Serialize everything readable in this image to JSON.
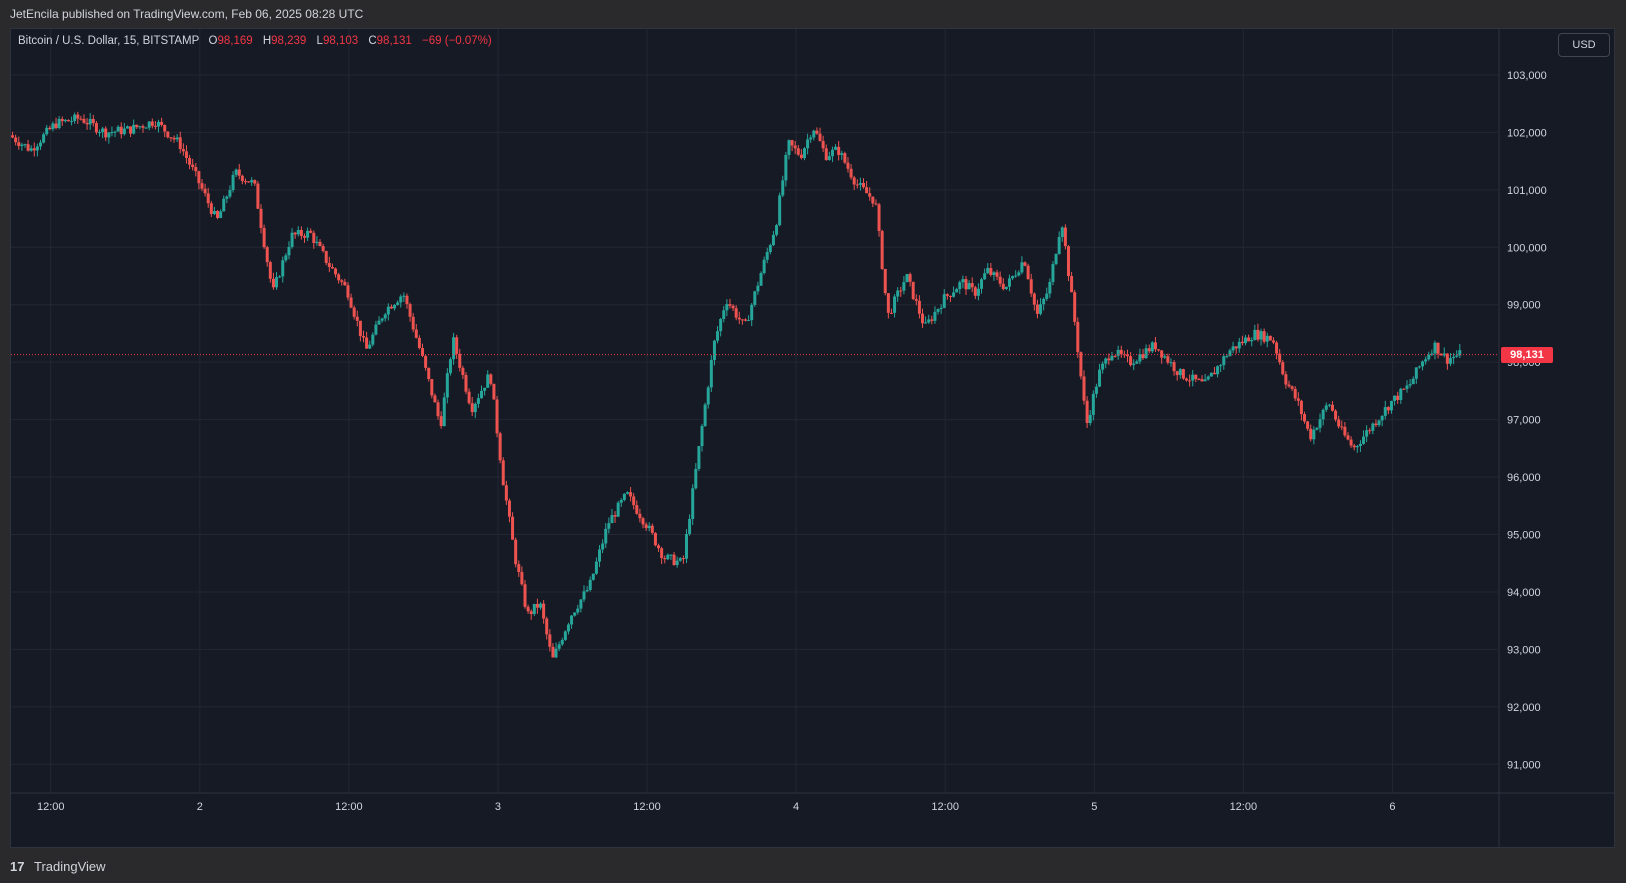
{
  "publisher_line": "JetEncila published on TradingView.com, Feb 06, 2025 08:28 UTC",
  "legend": {
    "symbol": "Bitcoin / U.S. Dollar, 15, BITSTAMP",
    "o_label": "O",
    "o_value": "98,169",
    "h_label": "H",
    "h_value": "98,239",
    "l_label": "L",
    "l_value": "98,103",
    "c_label": "C",
    "c_value": "98,131",
    "change": "−69 (−0.07%)"
  },
  "currency_button": "USD",
  "last_price_label": "98,131",
  "footer": {
    "logo": "17",
    "brand": "TradingView"
  },
  "colors": {
    "up": "#26a69a",
    "down": "#ef5350",
    "background": "#161a25",
    "grid": "#232733",
    "price_line": "#f23645"
  },
  "chart_data": {
    "type": "candlestick",
    "title": "Bitcoin / U.S. Dollar, 15, BITSTAMP",
    "interval": "15",
    "currency": "USD",
    "ylim": [
      90500,
      103800
    ],
    "y_ticks": [
      103000,
      102000,
      101000,
      100000,
      99000,
      98000,
      97000,
      96000,
      95000,
      94000,
      93000,
      92000,
      91000
    ],
    "y_tick_labels": [
      "103,000",
      "102,000",
      "101,000",
      "100,000",
      "99,000",
      "98,000",
      "97,000",
      "96,000",
      "95,000",
      "94,000",
      "93,000",
      "92,000",
      "91,000"
    ],
    "x_tick_labels": [
      "12:00",
      "2",
      "12:00",
      "3",
      "12:00",
      "4",
      "12:00",
      "5",
      "12:00",
      "6"
    ],
    "x_tick_hours": [
      12,
      24,
      36,
      48,
      60,
      72,
      84,
      96,
      108,
      120
    ],
    "x_range_hours": [
      8.8,
      128.5
    ],
    "last_price": 98131,
    "grid": true,
    "price_path": [
      [
        8.8,
        101950
      ],
      [
        10.5,
        101700
      ],
      [
        12.5,
        102150
      ],
      [
        14.5,
        102250
      ],
      [
        16.5,
        102000
      ],
      [
        18.5,
        102050
      ],
      [
        20.5,
        102200
      ],
      [
        22.5,
        101800
      ],
      [
        24,
        101150
      ],
      [
        25.5,
        100450
      ],
      [
        27,
        101300
      ],
      [
        28.5,
        101100
      ],
      [
        30,
        99200
      ],
      [
        31.5,
        100200
      ],
      [
        33,
        100250
      ],
      [
        34.5,
        99700
      ],
      [
        36,
        99250
      ],
      [
        37.5,
        98200
      ],
      [
        39,
        98900
      ],
      [
        40.5,
        99200
      ],
      [
        42,
        98100
      ],
      [
        43.5,
        96900
      ],
      [
        44.5,
        98400
      ],
      [
        46,
        97200
      ],
      [
        47.5,
        97800
      ],
      [
        48.5,
        96000
      ],
      [
        49.5,
        94600
      ],
      [
        50.5,
        93600
      ],
      [
        51.5,
        93800
      ],
      [
        52.5,
        92800
      ],
      [
        54,
        93600
      ],
      [
        55.5,
        94100
      ],
      [
        57,
        95200
      ],
      [
        58.5,
        95700
      ],
      [
        60,
        95200
      ],
      [
        61.5,
        94600
      ],
      [
        63,
        94500
      ],
      [
        64.5,
        96800
      ],
      [
        65.5,
        98300
      ],
      [
        66.5,
        99100
      ],
      [
        68,
        98600
      ],
      [
        69.5,
        99700
      ],
      [
        70.5,
        100400
      ],
      [
        71.5,
        101800
      ],
      [
        72.5,
        101600
      ],
      [
        73.5,
        102100
      ],
      [
        74.5,
        101600
      ],
      [
        75.5,
        101700
      ],
      [
        77,
        101100
      ],
      [
        78.5,
        100800
      ],
      [
        79.5,
        98800
      ],
      [
        81,
        99500
      ],
      [
        82.5,
        98600
      ],
      [
        84,
        99100
      ],
      [
        85.5,
        99400
      ],
      [
        86.5,
        99200
      ],
      [
        87.5,
        99600
      ],
      [
        89,
        99300
      ],
      [
        90.5,
        99800
      ],
      [
        91.5,
        98800
      ],
      [
        92.5,
        99300
      ],
      [
        93.5,
        100500
      ],
      [
        94.5,
        98800
      ],
      [
        95.5,
        96900
      ],
      [
        96.5,
        97800
      ],
      [
        97.5,
        98200
      ],
      [
        99,
        98000
      ],
      [
        101,
        98300
      ],
      [
        103,
        97800
      ],
      [
        105,
        97600
      ],
      [
        107,
        98200
      ],
      [
        109,
        98500
      ],
      [
        110.5,
        98400
      ],
      [
        111.5,
        97700
      ],
      [
        112.5,
        97300
      ],
      [
        113.5,
        96700
      ],
      [
        115,
        97300
      ],
      [
        116,
        96800
      ],
      [
        117,
        96500
      ],
      [
        118.5,
        96900
      ],
      [
        120,
        97300
      ],
      [
        121.5,
        97600
      ],
      [
        122.5,
        98000
      ],
      [
        123.5,
        98300
      ],
      [
        124.5,
        98050
      ],
      [
        125.5,
        98131
      ]
    ]
  }
}
